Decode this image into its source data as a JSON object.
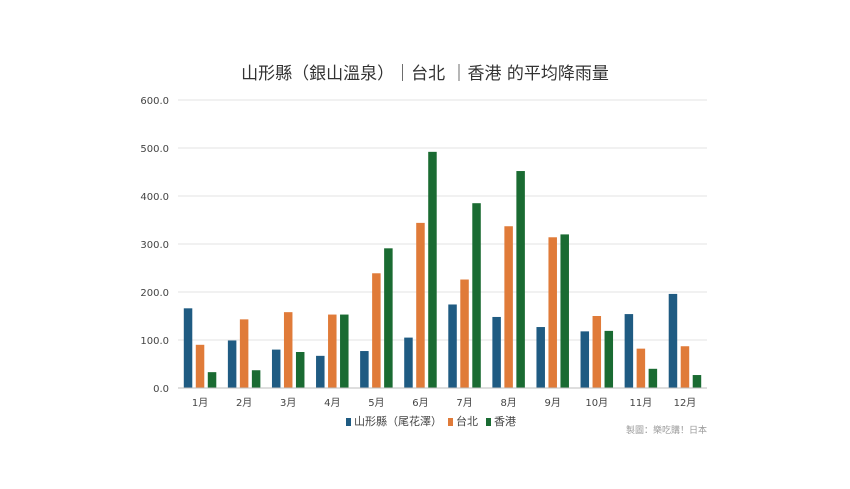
{
  "chart_data": {
    "type": "bar",
    "title": "山形縣（銀山溫泉）｜台北 ｜香港 的平均降雨量",
    "xlabel": "",
    "ylabel": "",
    "ylim": [
      0,
      600
    ],
    "yticks": [
      "0.0",
      "100.0",
      "200.0",
      "300.0",
      "400.0",
      "500.0",
      "600.0"
    ],
    "grid": true,
    "legend_position": "bottom",
    "categories": [
      "1月",
      "2月",
      "3月",
      "4月",
      "5月",
      "6月",
      "7月",
      "8月",
      "9月",
      "10月",
      "11月",
      "12月"
    ],
    "series": [
      {
        "name": "山形縣（尾花澤）",
        "color": "#1f5b82",
        "values": [
          166,
          99,
          80,
          67,
          77,
          105,
          174,
          148,
          127,
          118,
          154,
          196
        ]
      },
      {
        "name": "台北",
        "color": "#e07b39",
        "values": [
          90,
          143,
          158,
          153,
          239,
          344,
          226,
          337,
          314,
          150,
          82,
          87
        ]
      },
      {
        "name": "香港",
        "color": "#1a6b32",
        "values": [
          33,
          37,
          75,
          153,
          291,
          492,
          385,
          452,
          320,
          119,
          40,
          27
        ]
      }
    ],
    "credit": "製圖：樂吃購！日本"
  }
}
